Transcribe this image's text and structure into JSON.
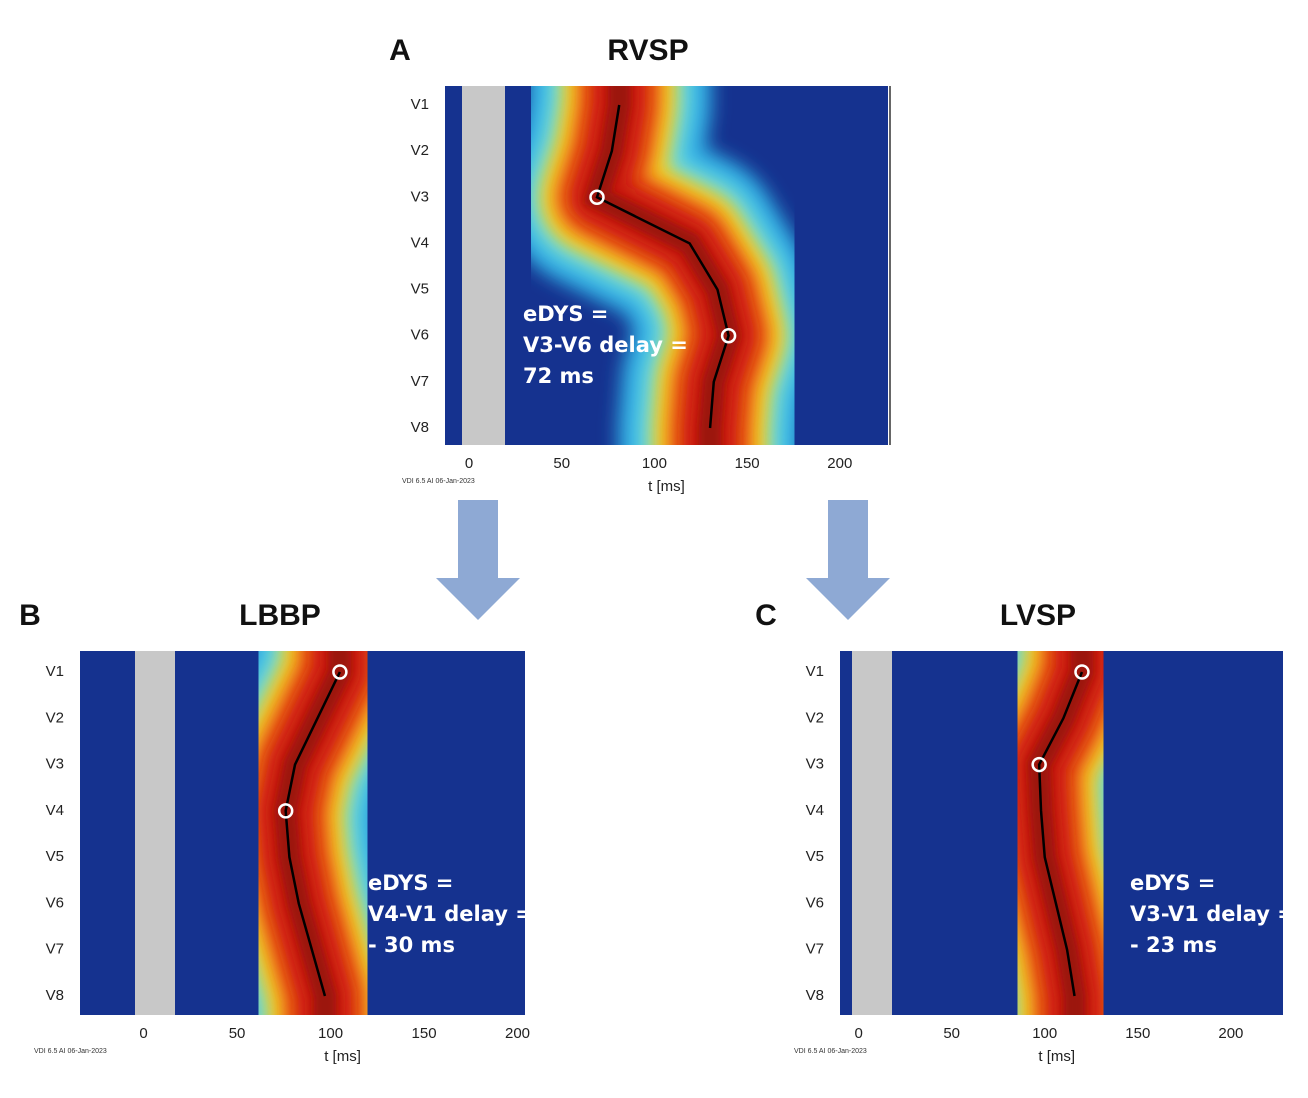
{
  "chart_data": [
    {
      "type": "activation",
      "panel": "A",
      "title": "RVSP",
      "categories": [
        "V1",
        "V2",
        "V3",
        "V4",
        "V5",
        "V6",
        "V7",
        "V8"
      ],
      "values": [
        81,
        77,
        69,
        119,
        134,
        140,
        132,
        130
      ],
      "marked": [
        2,
        5
      ],
      "xlim": [
        -13,
        226
      ],
      "xticks": [
        0,
        50,
        100,
        150,
        200
      ],
      "xlabel": "t  [ms]",
      "annotation": [
        "eDYS =",
        "V3-V6 delay =",
        "72 ms"
      ],
      "footer": "VDI 6.5 AI 06-Jan-2023"
    },
    {
      "type": "activation",
      "panel": "B",
      "title": "LBBP",
      "categories": [
        "V1",
        "V2",
        "V3",
        "V4",
        "V5",
        "V6",
        "V7",
        "V8"
      ],
      "values": [
        105,
        93,
        81,
        76,
        78,
        83,
        90,
        97
      ],
      "marked": [
        3,
        0
      ],
      "xlim": [
        -34,
        204
      ],
      "xticks": [
        0,
        50,
        100,
        150,
        200
      ],
      "xlabel": "t  [ms]",
      "annotation": [
        "eDYS =",
        "V4-V1 delay =",
        "- 30 ms"
      ],
      "footer": "VDI 6.5 AI 06-Jan-2023"
    },
    {
      "type": "activation",
      "panel": "C",
      "title": "LVSP",
      "categories": [
        "V1",
        "V2",
        "V3",
        "V4",
        "V5",
        "V6",
        "V7",
        "V8"
      ],
      "values": [
        120,
        110,
        97,
        98,
        100,
        106,
        112,
        116
      ],
      "marked": [
        2,
        0
      ],
      "xlim": [
        -10,
        228
      ],
      "xticks": [
        0,
        50,
        100,
        150,
        200
      ],
      "xlabel": "t  [ms]",
      "annotation": [
        "eDYS =",
        "V3-V1 delay =",
        "- 23 ms"
      ],
      "footer": "VDI 6.5 AI 06-Jan-2023"
    }
  ]
}
